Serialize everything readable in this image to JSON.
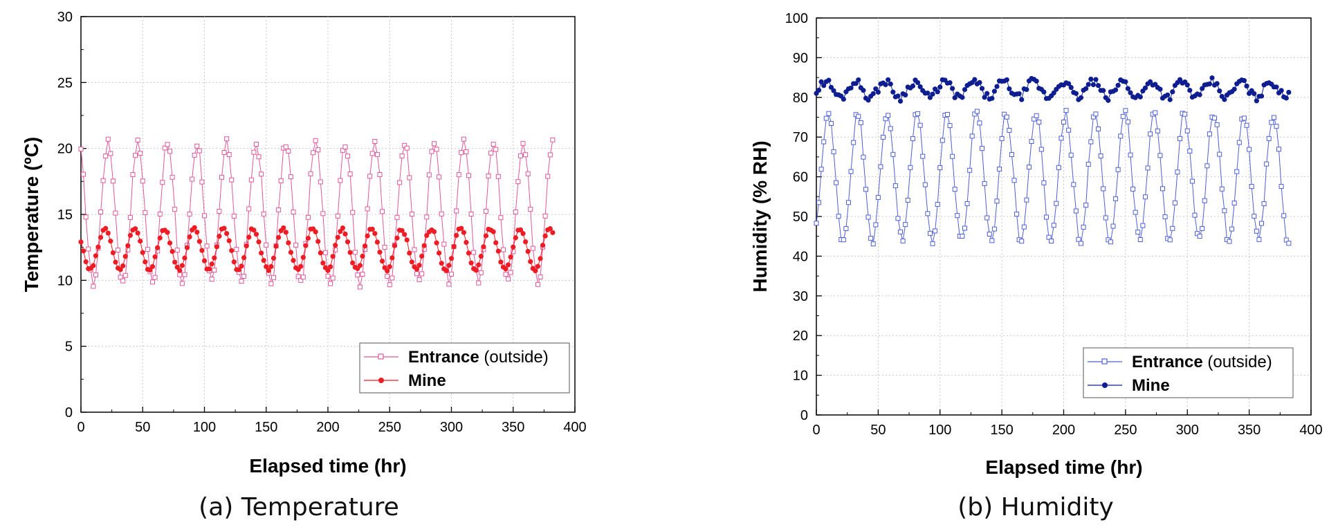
{
  "chart_data": [
    {
      "type": "line",
      "caption": "(a) Temperature",
      "xlabel": "Elapsed time (hr)",
      "ylabel": "Temperature (ºC)",
      "xlim": [
        0,
        400
      ],
      "ylim": [
        0,
        30
      ],
      "xticks": [
        0,
        50,
        100,
        150,
        200,
        250,
        300,
        350,
        400
      ],
      "yticks": [
        0,
        5,
        10,
        15,
        20,
        25,
        30
      ],
      "grid": true,
      "legend_position": "bottom-right",
      "series_gen": {
        "x_start": 0,
        "x_end": 382,
        "step": 2,
        "period": 24
      },
      "series": [
        {
          "name": "Entrance",
          "suffix": " (outside)",
          "marker": "open-square",
          "color": "#e0569a",
          "mean": 15.1,
          "amplitude": 5.3,
          "phase": 22,
          "jitter": 0.35
        },
        {
          "name": "Mine",
          "suffix": "",
          "marker": "filled-circle",
          "color": "#ee1c24",
          "mean": 12.35,
          "amplitude": 1.55,
          "phase": 19.5,
          "jitter": 0.12
        }
      ]
    },
    {
      "type": "line",
      "caption": "(b) Humidity",
      "xlabel": "Elapsed time (hr)",
      "ylabel": "Humidity (% RH)",
      "xlim": [
        0,
        400
      ],
      "ylim": [
        0,
        100
      ],
      "xticks": [
        0,
        50,
        100,
        150,
        200,
        250,
        300,
        350,
        400
      ],
      "yticks": [
        0,
        10,
        20,
        30,
        40,
        50,
        60,
        70,
        80,
        90,
        100
      ],
      "grid": true,
      "legend_position": "bottom-right",
      "series_gen": {
        "x_start": 0,
        "x_end": 382,
        "step": 2,
        "period": 24
      },
      "series": [
        {
          "name": "Entrance",
          "suffix": " (outside)",
          "marker": "open-square",
          "color": "#4d5fd6",
          "mean": 60,
          "amplitude": 16,
          "phase": 9.5,
          "jitter": 1.2
        },
        {
          "name": "Mine",
          "suffix": "",
          "marker": "filled-circle",
          "color": "#0e1d8f",
          "mean": 82,
          "amplitude": 2.0,
          "phase": 7.5,
          "jitter": 1.0
        }
      ]
    }
  ]
}
